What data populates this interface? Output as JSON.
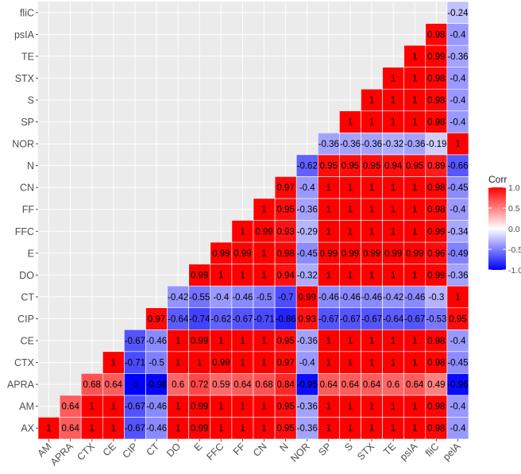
{
  "chart_data": {
    "type": "heatmap",
    "title": "",
    "xlabel": "",
    "ylabel": "",
    "x_categories": [
      "AM",
      "APRA",
      "CTX",
      "CE",
      "CIP",
      "CT",
      "DO",
      "E",
      "FFC",
      "FF",
      "CN",
      "N",
      "NOR",
      "SP",
      "S",
      "STX",
      "TE",
      "psIA",
      "fliC",
      "pelA"
    ],
    "y_categories_bottom_to_top": [
      "AX",
      "AM",
      "APRA",
      "CTX",
      "CE",
      "CIP",
      "CT",
      "DO",
      "E",
      "FFC",
      "FF",
      "CN",
      "N",
      "NOR",
      "SP",
      "S",
      "STX",
      "TE",
      "psIA",
      "fliC"
    ],
    "rows": [
      {
        "y": "AX",
        "values": [
          "1",
          "0.64",
          "1",
          "1",
          "-0.67",
          "-0.46",
          "1",
          "0.99",
          "1",
          "1",
          "1",
          "0.95",
          "-0.36",
          "1",
          "1",
          "1",
          "1",
          "1",
          "0.98",
          "-0.4"
        ]
      },
      {
        "y": "AM",
        "values": [
          null,
          "0.64",
          "1",
          "1",
          "-0.67",
          "-0.46",
          "1",
          "0.99",
          "1",
          "1",
          "1",
          "0.95",
          "-0.36",
          "1",
          "1",
          "1",
          "1",
          "1",
          "0.98",
          "-0.4"
        ]
      },
      {
        "y": "APRA",
        "values": [
          null,
          null,
          "0.68",
          "0.64",
          "-1",
          "-0.98",
          "0.6",
          "0.72",
          "0.59",
          "0.64",
          "0.68",
          "0.84",
          "-0.95",
          "0.64",
          "0.64",
          "0.64",
          "0.6",
          "0.64",
          "0.49",
          "-0.96"
        ]
      },
      {
        "y": "CTX",
        "values": [
          null,
          null,
          null,
          "1",
          "-0.71",
          "-0.5",
          "1",
          "1",
          "0.99",
          "1",
          "1",
          "0.97",
          "-0.4",
          "1",
          "1",
          "1",
          "1",
          "1",
          "0.98",
          "-0.45"
        ]
      },
      {
        "y": "CE",
        "values": [
          null,
          null,
          null,
          null,
          "-0.67",
          "-0.46",
          "1",
          "0.99",
          "1",
          "1",
          "1",
          "0.95",
          "-0.36",
          "1",
          "1",
          "1",
          "1",
          "1",
          "0.98",
          "-0.4"
        ]
      },
      {
        "y": "CIP",
        "values": [
          null,
          null,
          null,
          null,
          null,
          "0.97",
          "-0.64",
          "-0.74",
          "-0.62",
          "-0.67",
          "-0.71",
          "-0.86",
          "0.93",
          "-0.67",
          "-0.67",
          "-0.67",
          "-0.64",
          "-0.67",
          "-0.53",
          "0.95"
        ]
      },
      {
        "y": "CT",
        "values": [
          null,
          null,
          null,
          null,
          null,
          null,
          "-0.42",
          "-0.55",
          "-0.4",
          "-0.46",
          "-0.5",
          "-0.7",
          "0.99",
          "-0.46",
          "-0.46",
          "-0.46",
          "-0.42",
          "-0.46",
          "-0.3",
          "1"
        ]
      },
      {
        "y": "DO",
        "values": [
          null,
          null,
          null,
          null,
          null,
          null,
          null,
          "0.99",
          "1",
          "1",
          "1",
          "0.94",
          "-0.32",
          "1",
          "1",
          "1",
          "1",
          "1",
          "0.99",
          "-0.36"
        ]
      },
      {
        "y": "E",
        "values": [
          null,
          null,
          null,
          null,
          null,
          null,
          null,
          null,
          "0.99",
          "0.99",
          "1",
          "0.98",
          "-0.45",
          "0.99",
          "0.99",
          "0.99",
          "0.99",
          "0.99",
          "0.96",
          "-0.49"
        ]
      },
      {
        "y": "FFC",
        "values": [
          null,
          null,
          null,
          null,
          null,
          null,
          null,
          null,
          null,
          "1",
          "0.99",
          "0.93",
          "-0.29",
          "1",
          "1",
          "1",
          "1",
          "1",
          "0.99",
          "-0.34"
        ]
      },
      {
        "y": "FF",
        "values": [
          null,
          null,
          null,
          null,
          null,
          null,
          null,
          null,
          null,
          null,
          "1",
          "0.95",
          "-0.36",
          "1",
          "1",
          "1",
          "1",
          "1",
          "0.98",
          "-0.4"
        ]
      },
      {
        "y": "CN",
        "values": [
          null,
          null,
          null,
          null,
          null,
          null,
          null,
          null,
          null,
          null,
          null,
          "0.97",
          "-0.4",
          "1",
          "1",
          "1",
          "1",
          "1",
          "0.98",
          "-0.45"
        ]
      },
      {
        "y": "N",
        "values": [
          null,
          null,
          null,
          null,
          null,
          null,
          null,
          null,
          null,
          null,
          null,
          null,
          "-0.62",
          "0.95",
          "0.95",
          "0.95",
          "0.94",
          "0.95",
          "0.89",
          "-0.66"
        ]
      },
      {
        "y": "NOR",
        "values": [
          null,
          null,
          null,
          null,
          null,
          null,
          null,
          null,
          null,
          null,
          null,
          null,
          null,
          "-0.36",
          "-0.36",
          "-0.36",
          "-0.32",
          "-0.36",
          "-0.19",
          "1"
        ]
      },
      {
        "y": "SP",
        "values": [
          null,
          null,
          null,
          null,
          null,
          null,
          null,
          null,
          null,
          null,
          null,
          null,
          null,
          null,
          "1",
          "1",
          "1",
          "1",
          "0.98",
          "-0.4"
        ]
      },
      {
        "y": "S",
        "values": [
          null,
          null,
          null,
          null,
          null,
          null,
          null,
          null,
          null,
          null,
          null,
          null,
          null,
          null,
          null,
          "1",
          "1",
          "1",
          "0.98",
          "-0.4"
        ]
      },
      {
        "y": "STX",
        "values": [
          null,
          null,
          null,
          null,
          null,
          null,
          null,
          null,
          null,
          null,
          null,
          null,
          null,
          null,
          null,
          null,
          "1",
          "1",
          "0.98",
          "-0.4"
        ]
      },
      {
        "y": "TE",
        "values": [
          null,
          null,
          null,
          null,
          null,
          null,
          null,
          null,
          null,
          null,
          null,
          null,
          null,
          null,
          null,
          null,
          null,
          "1",
          "0.99",
          "-0.36"
        ]
      },
      {
        "y": "psIA",
        "values": [
          null,
          null,
          null,
          null,
          null,
          null,
          null,
          null,
          null,
          null,
          null,
          null,
          null,
          null,
          null,
          null,
          null,
          null,
          "0.98",
          "-0.4"
        ]
      },
      {
        "y": "fliC",
        "values": [
          null,
          null,
          null,
          null,
          null,
          null,
          null,
          null,
          null,
          null,
          null,
          null,
          null,
          null,
          null,
          null,
          null,
          null,
          null,
          "-0.24"
        ]
      }
    ],
    "color_scale": {
      "low": "#0000ff",
      "mid": "#ffffff",
      "high": "#ff0000",
      "range": [
        -1,
        1
      ]
    },
    "legend": {
      "title": "Corr",
      "ticks": [
        1.0,
        0.5,
        0.0,
        -0.5,
        -1.0
      ],
      "tick_labels": [
        "1.0",
        "0.5",
        "0.0",
        "-0.5",
        "-1.0"
      ],
      "placement": "right"
    },
    "grid": true,
    "panel_background": "#ebebeb",
    "grid_line_color": "#ffffff"
  }
}
